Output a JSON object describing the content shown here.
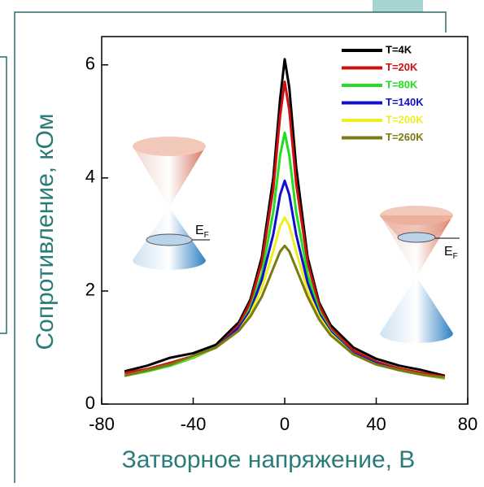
{
  "chart_data": {
    "type": "line",
    "x_label": "Затворное напряжение, В",
    "y_label": "Сопротивление, кОм",
    "x": [
      -70,
      -60,
      -50,
      -40,
      -30,
      -20,
      -15,
      -10,
      -5,
      -2,
      0,
      2,
      5,
      10,
      15,
      20,
      30,
      40,
      50,
      60,
      70
    ],
    "series": [
      {
        "name": "T=4K",
        "color": "#000000",
        "values": [
          0.58,
          0.68,
          0.82,
          0.9,
          1.05,
          1.45,
          1.85,
          2.6,
          4.0,
          5.4,
          6.1,
          5.6,
          4.2,
          2.6,
          1.8,
          1.4,
          1.0,
          0.8,
          0.68,
          0.6,
          0.5
        ]
      },
      {
        "name": "T=20K",
        "color": "#d01010",
        "values": [
          0.55,
          0.62,
          0.73,
          0.85,
          1.0,
          1.4,
          1.8,
          2.5,
          3.8,
          5.1,
          5.7,
          5.2,
          3.9,
          2.5,
          1.75,
          1.35,
          0.95,
          0.75,
          0.63,
          0.55,
          0.48
        ]
      },
      {
        "name": "T=80K",
        "color": "#22dd22",
        "values": [
          0.5,
          0.58,
          0.68,
          0.82,
          1.0,
          1.35,
          1.7,
          2.3,
          3.4,
          4.4,
          4.8,
          4.4,
          3.4,
          2.3,
          1.65,
          1.3,
          0.9,
          0.72,
          0.6,
          0.52,
          0.45
        ]
      },
      {
        "name": "T=140K",
        "color": "#1010cc",
        "values": [
          0.5,
          0.6,
          0.7,
          0.85,
          1.0,
          1.35,
          1.65,
          2.2,
          3.0,
          3.7,
          3.95,
          3.7,
          3.0,
          2.15,
          1.6,
          1.28,
          0.9,
          0.72,
          0.6,
          0.52,
          0.46
        ]
      },
      {
        "name": "T=200K",
        "color": "#eeee22",
        "values": [
          0.5,
          0.6,
          0.7,
          0.84,
          1.0,
          1.3,
          1.6,
          2.05,
          2.7,
          3.15,
          3.3,
          3.15,
          2.7,
          2.0,
          1.55,
          1.25,
          0.88,
          0.7,
          0.6,
          0.52,
          0.46
        ]
      },
      {
        "name": "T=260K",
        "color": "#7a7a10",
        "values": [
          0.5,
          0.6,
          0.7,
          0.85,
          1.0,
          1.3,
          1.55,
          1.9,
          2.4,
          2.7,
          2.8,
          2.7,
          2.4,
          1.9,
          1.5,
          1.22,
          0.88,
          0.7,
          0.6,
          0.52,
          0.47
        ]
      }
    ],
    "xlim": [
      -80,
      80
    ],
    "ylim": [
      0,
      6.5
    ],
    "xticks": [
      -80,
      -40,
      0,
      40,
      80
    ],
    "yticks": [
      0,
      2,
      4,
      6
    ],
    "legend": "upper right",
    "annotations": [
      {
        "text": "E",
        "sub": "F"
      },
      {
        "text": "E",
        "sub": "F"
      }
    ]
  }
}
